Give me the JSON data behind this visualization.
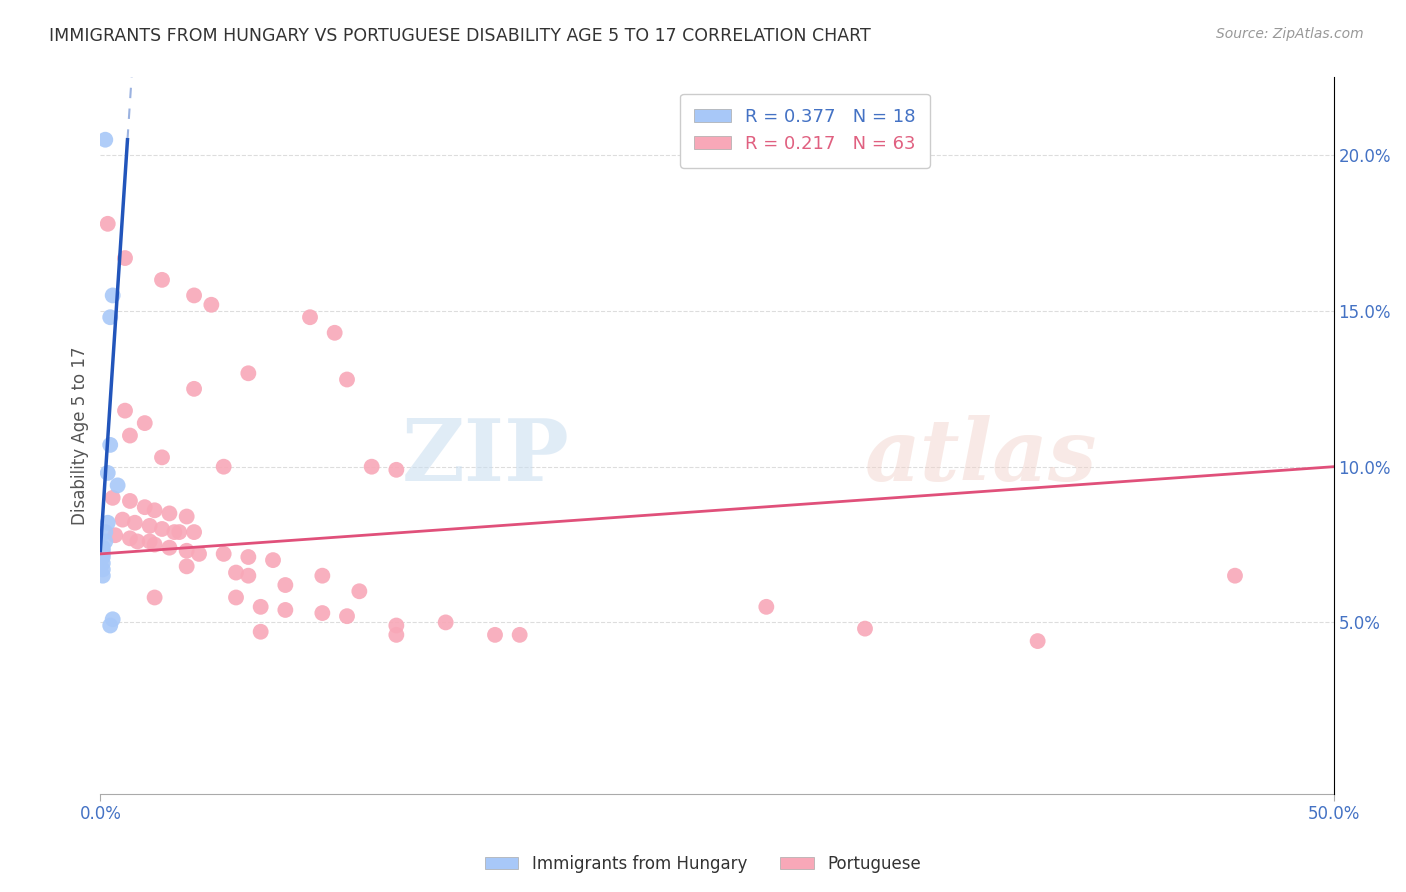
{
  "title": "IMMIGRANTS FROM HUNGARY VS PORTUGUESE DISABILITY AGE 5 TO 17 CORRELATION CHART",
  "source": "Source: ZipAtlas.com",
  "ylabel": "Disability Age 5 to 17",
  "ylabel_right_ticks": [
    "5.0%",
    "10.0%",
    "15.0%",
    "20.0%"
  ],
  "ylabel_right_values": [
    0.05,
    0.1,
    0.15,
    0.2
  ],
  "xlim": [
    0.0,
    0.5
  ],
  "ylim": [
    -0.005,
    0.225
  ],
  "hungary_color": "#a8c8f8",
  "portuguese_color": "#f8a8b8",
  "hungary_line_color": "#2255BB",
  "portuguese_line_color": "#E0507A",
  "hungary_line": {
    "x0": 0.0,
    "y0": 0.073,
    "x1": 0.011,
    "y1": 0.205
  },
  "hungary_line_dash_x1": 0.16,
  "portuguese_line": {
    "x0": 0.0,
    "y0": 0.072,
    "x1": 0.5,
    "y1": 0.1
  },
  "hungary_scatter": [
    [
      0.002,
      0.205
    ],
    [
      0.005,
      0.155
    ],
    [
      0.004,
      0.148
    ],
    [
      0.004,
      0.107
    ],
    [
      0.003,
      0.098
    ],
    [
      0.007,
      0.094
    ],
    [
      0.003,
      0.082
    ],
    [
      0.002,
      0.079
    ],
    [
      0.002,
      0.076
    ],
    [
      0.001,
      0.074
    ],
    [
      0.001,
      0.073
    ],
    [
      0.001,
      0.072
    ],
    [
      0.001,
      0.071
    ],
    [
      0.001,
      0.069
    ],
    [
      0.001,
      0.067
    ],
    [
      0.001,
      0.065
    ],
    [
      0.005,
      0.051
    ],
    [
      0.004,
      0.049
    ]
  ],
  "portuguese_scatter": [
    [
      0.003,
      0.178
    ],
    [
      0.01,
      0.167
    ],
    [
      0.025,
      0.16
    ],
    [
      0.038,
      0.155
    ],
    [
      0.045,
      0.152
    ],
    [
      0.085,
      0.148
    ],
    [
      0.095,
      0.143
    ],
    [
      0.06,
      0.13
    ],
    [
      0.1,
      0.128
    ],
    [
      0.038,
      0.125
    ],
    [
      0.01,
      0.118
    ],
    [
      0.018,
      0.114
    ],
    [
      0.012,
      0.11
    ],
    [
      0.025,
      0.103
    ],
    [
      0.05,
      0.1
    ],
    [
      0.11,
      0.1
    ],
    [
      0.12,
      0.099
    ],
    [
      0.005,
      0.09
    ],
    [
      0.012,
      0.089
    ],
    [
      0.018,
      0.087
    ],
    [
      0.022,
      0.086
    ],
    [
      0.028,
      0.085
    ],
    [
      0.035,
      0.084
    ],
    [
      0.009,
      0.083
    ],
    [
      0.014,
      0.082
    ],
    [
      0.02,
      0.081
    ],
    [
      0.025,
      0.08
    ],
    [
      0.03,
      0.079
    ],
    [
      0.032,
      0.079
    ],
    [
      0.038,
      0.079
    ],
    [
      0.006,
      0.078
    ],
    [
      0.012,
      0.077
    ],
    [
      0.015,
      0.076
    ],
    [
      0.02,
      0.076
    ],
    [
      0.022,
      0.075
    ],
    [
      0.028,
      0.074
    ],
    [
      0.035,
      0.073
    ],
    [
      0.04,
      0.072
    ],
    [
      0.05,
      0.072
    ],
    [
      0.06,
      0.071
    ],
    [
      0.07,
      0.07
    ],
    [
      0.035,
      0.068
    ],
    [
      0.055,
      0.066
    ],
    [
      0.06,
      0.065
    ],
    [
      0.09,
      0.065
    ],
    [
      0.075,
      0.062
    ],
    [
      0.105,
      0.06
    ],
    [
      0.022,
      0.058
    ],
    [
      0.055,
      0.058
    ],
    [
      0.065,
      0.055
    ],
    [
      0.075,
      0.054
    ],
    [
      0.09,
      0.053
    ],
    [
      0.1,
      0.052
    ],
    [
      0.14,
      0.05
    ],
    [
      0.12,
      0.049
    ],
    [
      0.065,
      0.047
    ],
    [
      0.12,
      0.046
    ],
    [
      0.16,
      0.046
    ],
    [
      0.17,
      0.046
    ],
    [
      0.38,
      0.044
    ],
    [
      0.27,
      0.055
    ],
    [
      0.31,
      0.048
    ],
    [
      0.46,
      0.065
    ]
  ],
  "watermark_zip": "ZIP",
  "watermark_atlas": "atlas",
  "background_color": "#ffffff",
  "grid_color": "#dddddd"
}
